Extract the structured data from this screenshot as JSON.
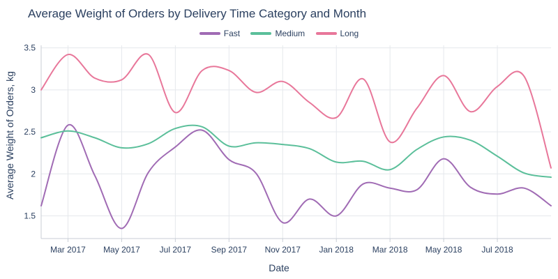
{
  "chart_data": {
    "type": "line",
    "title": "Average Weight of Orders by Delivery Time Category and Month",
    "xlabel": "Date",
    "ylabel": "Average Weight of Orders, kg",
    "ylim": [
      1.23,
      3.53
    ],
    "yticks": [
      1.5,
      2,
      2.5,
      3,
      3.5
    ],
    "ytick_labels": [
      "1.5",
      "2",
      "2.5",
      "3",
      "3.5"
    ],
    "x": [
      "Feb 2017",
      "Mar 2017",
      "Apr 2017",
      "May 2017",
      "Jun 2017",
      "Jul 2017",
      "Aug 2017",
      "Sep 2017",
      "Oct 2017",
      "Nov 2017",
      "Dec 2017",
      "Jan 2018",
      "Feb 2018",
      "Mar 2018",
      "Apr 2018",
      "May 2018",
      "Jun 2018",
      "Jul 2018",
      "Aug 2018",
      "Sep 2018"
    ],
    "xtick_labels": [
      {
        "index": 1,
        "label": "Mar 2017"
      },
      {
        "index": 3,
        "label": "May 2017"
      },
      {
        "index": 5,
        "label": "Jul 2017"
      },
      {
        "index": 7,
        "label": "Sep 2017"
      },
      {
        "index": 9,
        "label": "Nov 2017"
      },
      {
        "index": 11,
        "label": "Jan 2018"
      },
      {
        "index": 13,
        "label": "Mar 2018"
      },
      {
        "index": 15,
        "label": "May 2018"
      },
      {
        "index": 17,
        "label": "Jul 2018"
      }
    ],
    "grid": true,
    "legend_position": "top-center",
    "series": [
      {
        "name": "Fast",
        "color": "#a06bb4",
        "values": [
          1.62,
          2.58,
          1.98,
          1.35,
          2.02,
          2.32,
          2.52,
          2.17,
          2.01,
          1.42,
          1.7,
          1.5,
          1.88,
          1.83,
          1.81,
          2.18,
          1.84,
          1.76,
          1.83,
          1.62
        ]
      },
      {
        "name": "Medium",
        "color": "#5bbf9a",
        "values": [
          2.43,
          2.51,
          2.43,
          2.31,
          2.36,
          2.54,
          2.56,
          2.33,
          2.37,
          2.35,
          2.3,
          2.14,
          2.15,
          2.05,
          2.29,
          2.44,
          2.4,
          2.21,
          2.01,
          1.96
        ]
      },
      {
        "name": "Long",
        "color": "#e8779a",
        "values": [
          3.0,
          3.42,
          3.14,
          3.12,
          3.42,
          2.73,
          3.23,
          3.23,
          2.97,
          3.1,
          2.85,
          2.67,
          3.13,
          2.38,
          2.78,
          3.17,
          2.74,
          3.04,
          3.16,
          2.07
        ]
      }
    ]
  }
}
